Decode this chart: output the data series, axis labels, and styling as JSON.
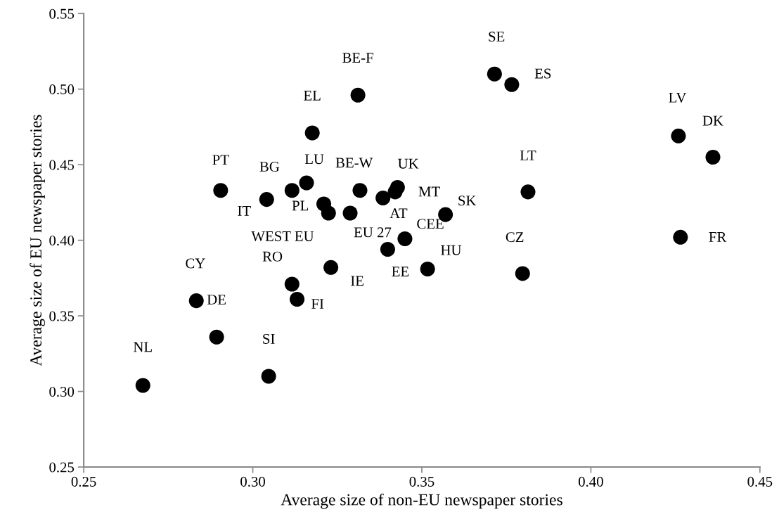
{
  "chart_data": {
    "type": "scatter",
    "xlabel": "Average size of non-EU newspaper stories",
    "ylabel": "Average size of EU newspaper stories",
    "x": [
      0.2675,
      0.3047,
      0.2893,
      0.2833,
      0.3131,
      0.3116,
      0.3231,
      0.2905,
      0.3041,
      0.3116,
      0.3159,
      0.321,
      0.3224,
      0.3288,
      0.3317,
      0.3385,
      0.3421,
      0.3428,
      0.3176,
      0.3311,
      0.3399,
      0.345,
      0.3715,
      0.3766,
      0.4259,
      0.4361,
      0.3814,
      0.357,
      0.3517,
      0.3798,
      0.4265
    ],
    "values": [
      0.304,
      0.31,
      0.336,
      0.36,
      0.361,
      0.371,
      0.382,
      0.433,
      0.427,
      0.433,
      0.438,
      0.424,
      0.418,
      0.418,
      0.433,
      0.428,
      0.432,
      0.435,
      0.471,
      0.496,
      0.394,
      0.401,
      0.51,
      0.503,
      0.469,
      0.455,
      0.432,
      0.417,
      0.381,
      0.378,
      0.402
    ],
    "color": "#000000",
    "marker": "circle",
    "annotations": [
      {
        "text": "NL",
        "x": 0.2675,
        "y": 0.304
      },
      {
        "text": "SI",
        "x": 0.3047,
        "y": 0.31
      },
      {
        "text": "DE",
        "x": 0.2893,
        "y": 0.336
      },
      {
        "text": "CY",
        "x": 0.2833,
        "y": 0.36
      },
      {
        "text": "FI",
        "x": 0.3131,
        "y": 0.361
      },
      {
        "text": "RO",
        "x": 0.3116,
        "y": 0.371
      },
      {
        "text": "IE",
        "x": 0.3231,
        "y": 0.382
      },
      {
        "text": "PT",
        "x": 0.2905,
        "y": 0.433
      },
      {
        "text": "IT",
        "x": 0.3041,
        "y": 0.427
      },
      {
        "text": "BG",
        "x": 0.3116,
        "y": 0.433
      },
      {
        "text": "LU",
        "x": 0.3159,
        "y": 0.438
      },
      {
        "text": "PL",
        "x": 0.321,
        "y": 0.424
      },
      {
        "text": "WEST EU",
        "x": 0.3224,
        "y": 0.418
      },
      {
        "text": "EU 27",
        "x": 0.3288,
        "y": 0.418
      },
      {
        "text": "BE-W",
        "x": 0.3317,
        "y": 0.433
      },
      {
        "text": "AT",
        "x": 0.3385,
        "y": 0.428
      },
      {
        "text": "MT",
        "x": 0.3421,
        "y": 0.432
      },
      {
        "text": "UK",
        "x": 0.3428,
        "y": 0.435
      },
      {
        "text": "EL",
        "x": 0.3176,
        "y": 0.471
      },
      {
        "text": "BE-F",
        "x": 0.3311,
        "y": 0.496
      },
      {
        "text": "EE",
        "x": 0.3399,
        "y": 0.394
      },
      {
        "text": "CEE",
        "x": 0.345,
        "y": 0.401
      },
      {
        "text": "SE",
        "x": 0.3715,
        "y": 0.51
      },
      {
        "text": "ES",
        "x": 0.3766,
        "y": 0.503
      },
      {
        "text": "LV",
        "x": 0.4259,
        "y": 0.469
      },
      {
        "text": "DK",
        "x": 0.4361,
        "y": 0.455
      },
      {
        "text": "LT",
        "x": 0.3814,
        "y": 0.432
      },
      {
        "text": "SK",
        "x": 0.357,
        "y": 0.417
      },
      {
        "text": "HU",
        "x": 0.3517,
        "y": 0.381
      },
      {
        "text": "CZ",
        "x": 0.3798,
        "y": 0.378
      },
      {
        "text": "FR",
        "x": 0.4265,
        "y": 0.402
      }
    ],
    "xlim": [
      0.25,
      0.45
    ],
    "xticks": [
      0.25,
      {
        "value": 0.3,
        "label": "0.30"
      },
      0.35,
      {
        "value": 0.4,
        "label": "0.40"
      },
      0.45
    ],
    "ylim": [
      0.25,
      0.55
    ],
    "yticks": [
      0.25,
      {
        "value": 0.3,
        "label": "0.30"
      },
      0.35,
      {
        "value": 0.4,
        "label": "0.40"
      },
      0.45,
      {
        "value": 0.5,
        "label": "0.50"
      },
      0.55
    ],
    "grid": false,
    "legend": false
  }
}
